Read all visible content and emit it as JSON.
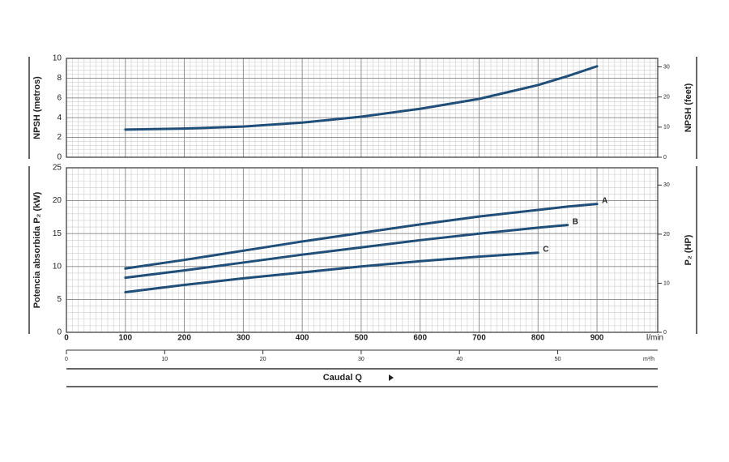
{
  "chart_data": [
    {
      "type": "line",
      "ylabel": "NPSH (metros)",
      "y2label": "NPSH (feet)",
      "x": [
        100,
        200,
        300,
        400,
        500,
        600,
        700,
        800,
        850,
        900
      ],
      "xlim": [
        0,
        1003
      ],
      "xticks": [
        0,
        100,
        200,
        300,
        400,
        500,
        600,
        700,
        800,
        900
      ],
      "ylim": [
        0,
        10
      ],
      "yticks": [
        0,
        2,
        4,
        6,
        8,
        10
      ],
      "y2lim": [
        0,
        32.81
      ],
      "y2ticks": [
        0,
        10,
        20,
        30
      ],
      "grid": true,
      "series": [
        {
          "color": "#1f4e79",
          "values": [
            2.8,
            2.9,
            3.1,
            3.5,
            4.1,
            4.9,
            5.9,
            7.3,
            8.2,
            9.2
          ]
        }
      ]
    },
    {
      "type": "line",
      "ylabel": "Potencia absorbida P₂ (kW)",
      "y2label": "P₂ (HP)",
      "xlabel": "Caudal Q",
      "x_unit": "l/min",
      "x2_unit": "m³/h",
      "x": [
        100,
        200,
        300,
        400,
        500,
        600,
        700,
        800,
        850,
        900
      ],
      "xlim": [
        0,
        1003
      ],
      "xticks": [
        0,
        100,
        200,
        300,
        400,
        500,
        600,
        700,
        800,
        900
      ],
      "x2lim": [
        0,
        60.18
      ],
      "x2ticks": [
        0,
        10,
        20,
        30,
        40,
        50
      ],
      "ylim": [
        0,
        25
      ],
      "yticks": [
        0,
        5,
        10,
        15,
        20,
        25
      ],
      "y2lim": [
        0,
        33.53
      ],
      "y2ticks": [
        0,
        10,
        20,
        30
      ],
      "grid": true,
      "series": [
        {
          "name": "A",
          "color": "#1f4e79",
          "values": [
            9.7,
            11.0,
            12.4,
            13.8,
            15.1,
            16.4,
            17.6,
            18.6,
            19.1,
            19.5
          ]
        },
        {
          "name": "B",
          "color": "#1f4e79",
          "values": [
            8.3,
            9.4,
            10.6,
            11.8,
            12.9,
            14.0,
            15.0,
            15.9,
            16.3,
            null
          ]
        },
        {
          "name": "C",
          "color": "#1f4e79",
          "values": [
            6.1,
            7.2,
            8.2,
            9.1,
            10.0,
            10.8,
            11.5,
            12.1,
            null,
            null
          ]
        }
      ]
    }
  ]
}
